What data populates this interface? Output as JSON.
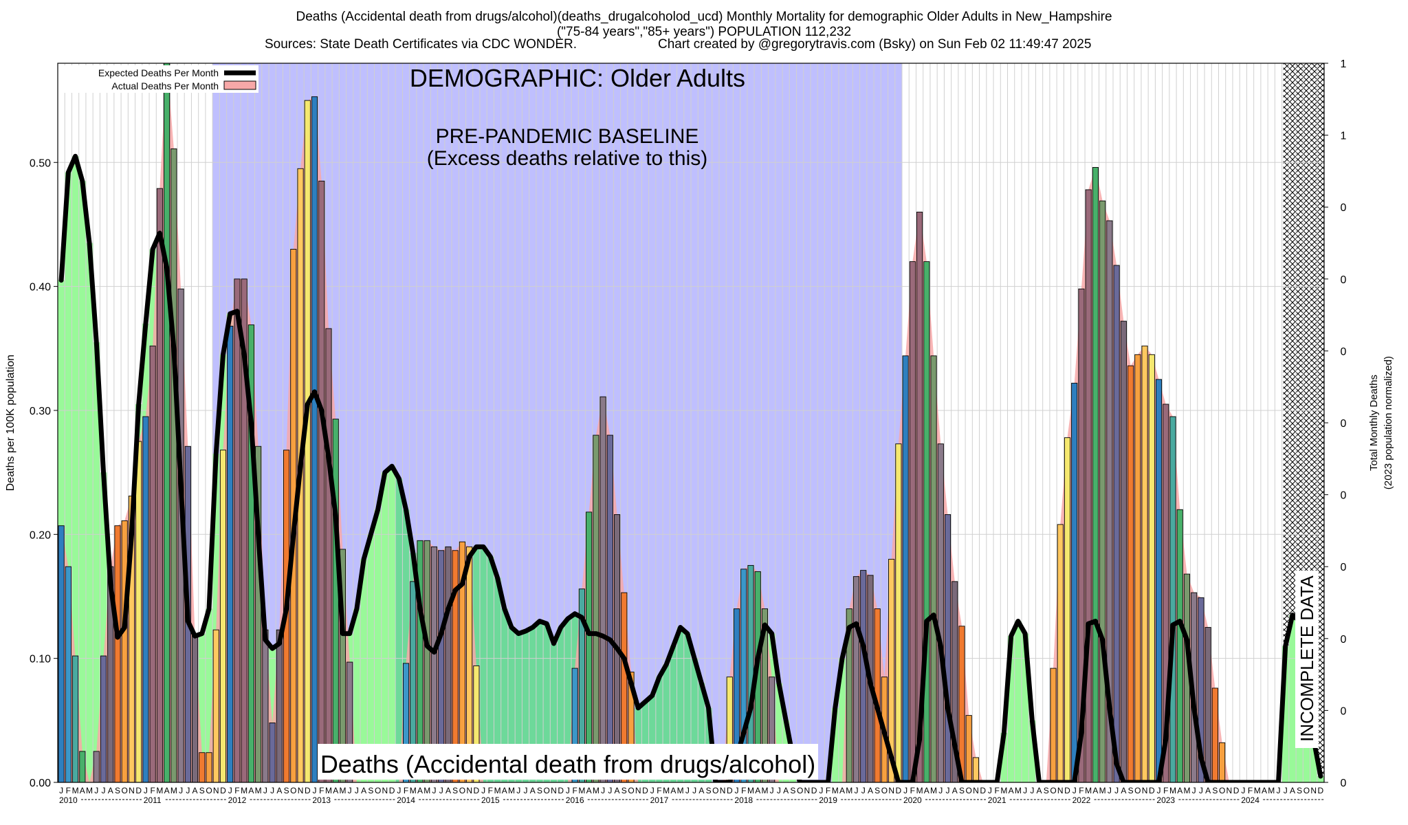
{
  "chart_data": {
    "type": "bar",
    "title_line1": "Deaths (Accidental death from drugs/alcohol)(deaths_drugalcoholod_ucd) Monthly Mortality for demographic Older Adults in New_Hampshire",
    "title_line2": "(\"75-84 years\",\"85+ years\") POPULATION 112,232",
    "sources": "Sources: State Death Certificates via CDC WONDER.",
    "credit": "Chart created by @gregorytravis.com (Bsky) on Sun Feb 02 11:49:47 2025",
    "ylabel": "Deaths per 100K population",
    "y2label_line1": "Total Monthly Deaths",
    "y2label_line2": "(2023 population normalized)",
    "ylim": [
      0,
      0.58
    ],
    "yticks": [
      0.0,
      0.1,
      0.2,
      0.3,
      0.4,
      0.5
    ],
    "ytick_labels": [
      "0.00",
      "0.10",
      "0.20",
      "0.30",
      "0.40",
      "0.50"
    ],
    "y2ticks": [
      0.0,
      0.058,
      0.116,
      0.174,
      0.232,
      0.29,
      0.348,
      0.406,
      0.464,
      0.522,
      0.58
    ],
    "y2tick_labels": [
      "0",
      "0",
      "0",
      "0",
      "0",
      "0",
      "0",
      "0",
      "0",
      "1",
      "1"
    ],
    "month_letters": [
      "J",
      "F",
      "M",
      "A",
      "M",
      "J",
      "J",
      "A",
      "S",
      "O",
      "N",
      "D"
    ],
    "years": [
      "2010",
      "2011",
      "2012",
      "2013",
      "2014",
      "2015",
      "2016",
      "2017",
      "2018",
      "2019",
      "2020",
      "2021",
      "2022",
      "2023",
      "2024"
    ],
    "legend_expected": "Expected Deaths Per Month",
    "legend_actual": "Actual Deaths Per Month",
    "demographic_label": "DEMOGRAPHIC: Older Adults",
    "baseline_label_1": "PRE-PANDEMIC BASELINE",
    "baseline_label_2": "(Excess deaths relative to this)",
    "cause_label": "Deaths (Accidental death from drugs/alcohol)",
    "incomplete_label": "INCOMPLETE DATA",
    "baseline_range_months": [
      22,
      120
    ],
    "incomplete_range_months": [
      174,
      180
    ],
    "colors": {
      "baseline_shade": "#bfbffe",
      "expected_line": "#000000",
      "actual_area": "#f7a8a8",
      "excess_fill_light": "#99f999",
      "excess_fill_dark": "#6dd99a",
      "bar_palette": [
        "#2e7fbf",
        "#3b97c9",
        "#4aaaa0",
        "#48b06a",
        "#7a9a6e",
        "#8a7a8a",
        "#6a6a9a",
        "#7a6a7a",
        "#f07a30",
        "#f7a040",
        "#ffc860",
        "#f5e870"
      ]
    },
    "actual": [
      0.207,
      0.174,
      0.102,
      0.025,
      0,
      0.025,
      0.102,
      0.174,
      0.207,
      0.211,
      0.231,
      0.275,
      0.295,
      0.352,
      0.479,
      0.583,
      0.511,
      0.398,
      0.271,
      0.119,
      0.024,
      0.024,
      0.123,
      0.268,
      0.368,
      0.406,
      0.406,
      0.369,
      0.271,
      0.123,
      0.048,
      0.123,
      0.268,
      0.43,
      0.495,
      0.55,
      0.553,
      0.485,
      0.366,
      0.293,
      0.188,
      0.097,
      0,
      0,
      0,
      0,
      0,
      0,
      0,
      0.096,
      0.162,
      0.195,
      0.195,
      0.19,
      0.187,
      0.19,
      0.187,
      0.194,
      0.19,
      0.094,
      0,
      0,
      0,
      0,
      0,
      0,
      0,
      0,
      0,
      0,
      0,
      0,
      0,
      0.092,
      0.156,
      0.218,
      0.28,
      0.311,
      0.28,
      0.216,
      0.153,
      0.089,
      0,
      0,
      0,
      0,
      0,
      0,
      0,
      0,
      0,
      0,
      0,
      0,
      0,
      0.085,
      0.14,
      0.172,
      0.175,
      0.17,
      0.14,
      0.085,
      0,
      0,
      0,
      0,
      0,
      0,
      0,
      0,
      0,
      0,
      0.14,
      0.166,
      0.171,
      0.167,
      0.14,
      0.085,
      0.18,
      0.273,
      0.344,
      0.42,
      0.46,
      0.42,
      0.344,
      0.273,
      0.216,
      0.162,
      0.126,
      0.054,
      0.02,
      0,
      0,
      0,
      0,
      0,
      0,
      0,
      0,
      0,
      0,
      0.092,
      0.208,
      0.278,
      0.322,
      0.398,
      0.478,
      0.496,
      0.469,
      0.453,
      0.417,
      0.372,
      0.336,
      0.345,
      0.352,
      0.345,
      0.325,
      0.305,
      0.295,
      0.22,
      0.168,
      0.153,
      0.149,
      0.125,
      0.076,
      0.032,
      0,
      0,
      0,
      0,
      0,
      0,
      0,
      0,
      0,
      0,
      0,
      0,
      0,
      0
    ],
    "expected": [
      0.405,
      0.492,
      0.505,
      0.485,
      0.435,
      0.355,
      0.25,
      0.16,
      0.117,
      0.125,
      0.2,
      0.305,
      0.37,
      0.43,
      0.443,
      0.415,
      0.35,
      0.24,
      0.13,
      0.118,
      0.12,
      0.14,
      0.265,
      0.345,
      0.378,
      0.38,
      0.345,
      0.29,
      0.2,
      0.115,
      0.108,
      0.112,
      0.14,
      0.2,
      0.255,
      0.305,
      0.315,
      0.3,
      0.262,
      0.215,
      0.12,
      0.12,
      0.14,
      0.18,
      0.2,
      0.22,
      0.25,
      0.255,
      0.245,
      0.22,
      0.185,
      0.14,
      0.11,
      0.105,
      0.12,
      0.14,
      0.155,
      0.16,
      0.182,
      0.19,
      0.19,
      0.182,
      0.165,
      0.14,
      0.125,
      0.12,
      0.122,
      0.125,
      0.13,
      0.128,
      0.112,
      0.125,
      0.132,
      0.136,
      0.133,
      0.12,
      0.12,
      0.118,
      0.115,
      0.108,
      0.1,
      0.08,
      0.06,
      0.065,
      0.07,
      0.085,
      0.095,
      0.11,
      0.125,
      0.12,
      0.1,
      0.08,
      0.06,
      0,
      0,
      0,
      0.02,
      0.04,
      0.06,
      0.1,
      0.127,
      0.12,
      0.08,
      0.05,
      0.02,
      0,
      0,
      0,
      0,
      0,
      0.06,
      0.1,
      0.125,
      0.128,
      0.11,
      0.08,
      0.06,
      0.04,
      0.02,
      0,
      0,
      0,
      0.035,
      0.13,
      0.135,
      0.11,
      0.06,
      0.03,
      0,
      0,
      0,
      0,
      0,
      0,
      0.04,
      0.118,
      0.13,
      0.12,
      0.05,
      0,
      0,
      0,
      0,
      0,
      0,
      0.04,
      0.128,
      0.13,
      0.115,
      0.06,
      0.015,
      0,
      0,
      0,
      0,
      0,
      0,
      0.035,
      0.127,
      0.13,
      0.115,
      0.06,
      0.02,
      0,
      0,
      0,
      0,
      0,
      0,
      0,
      0,
      0,
      0,
      0,
      0.11,
      0.135,
      0.13,
      0.11,
      0.035,
      0.005,
      0
    ]
  }
}
